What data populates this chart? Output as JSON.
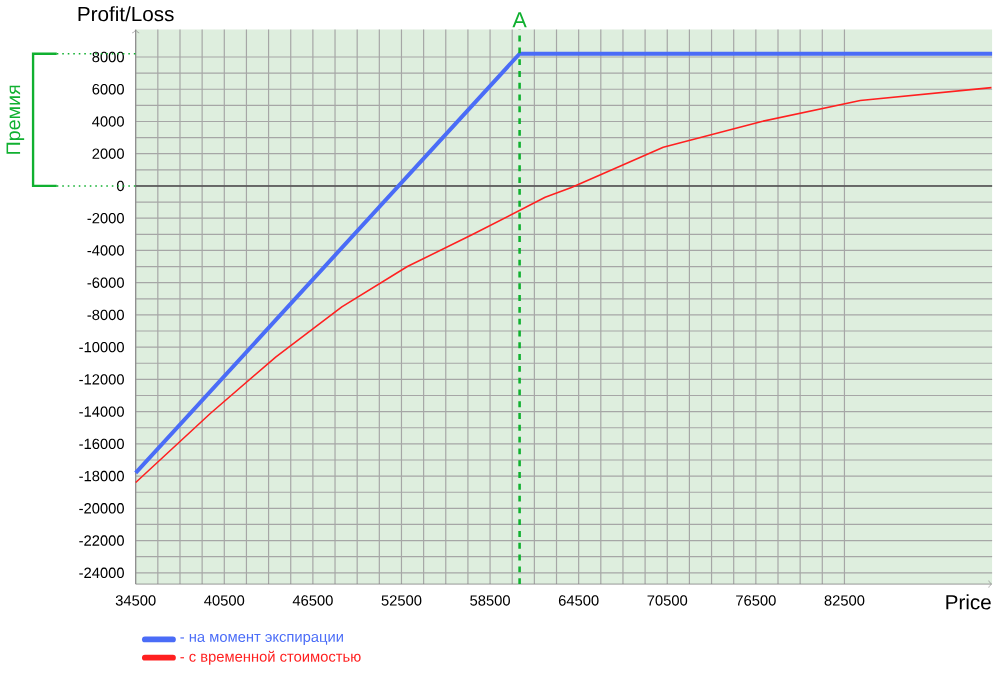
{
  "chart_data": {
    "type": "line",
    "xlabel": "Price",
    "ylabel": "Profit/Loss",
    "xlim": [
      34500,
      92500
    ],
    "ylim": [
      -24700,
      9700
    ],
    "xticks": [
      34500,
      40500,
      46500,
      52500,
      58500,
      64500,
      70500,
      76500,
      82500
    ],
    "yticks": [
      -24000,
      -22000,
      -20000,
      -18000,
      -16000,
      -14000,
      -12000,
      -10000,
      -8000,
      -6000,
      -4000,
      -2000,
      0,
      2000,
      4000,
      6000,
      8000
    ],
    "grid": true,
    "legend": "bottom",
    "marker": "none",
    "line_style": "solid",
    "series": [
      {
        "name": "- на момент экспирации",
        "color": "#4a6cf7",
        "x": [
          34500,
          60500,
          92500
        ],
        "values": [
          -17800,
          8200,
          8200
        ]
      },
      {
        "name": "- с временной стоимостью",
        "color": "#ff2020",
        "x": [
          34500,
          39570,
          44000,
          48460,
          52900,
          57340,
          62230,
          64010,
          70230,
          76900,
          83570,
          92460
        ],
        "values": [
          -18400,
          -14100,
          -10600,
          -7500,
          -5000,
          -3000,
          -700,
          -100,
          2400,
          4000,
          5300,
          6100
        ]
      }
    ],
    "ref_lines": [
      {
        "axis": "x",
        "value": 60500,
        "label": "A",
        "color": "#10b030",
        "line_style": "dashed"
      }
    ],
    "annotations": [
      "Премия"
    ]
  }
}
